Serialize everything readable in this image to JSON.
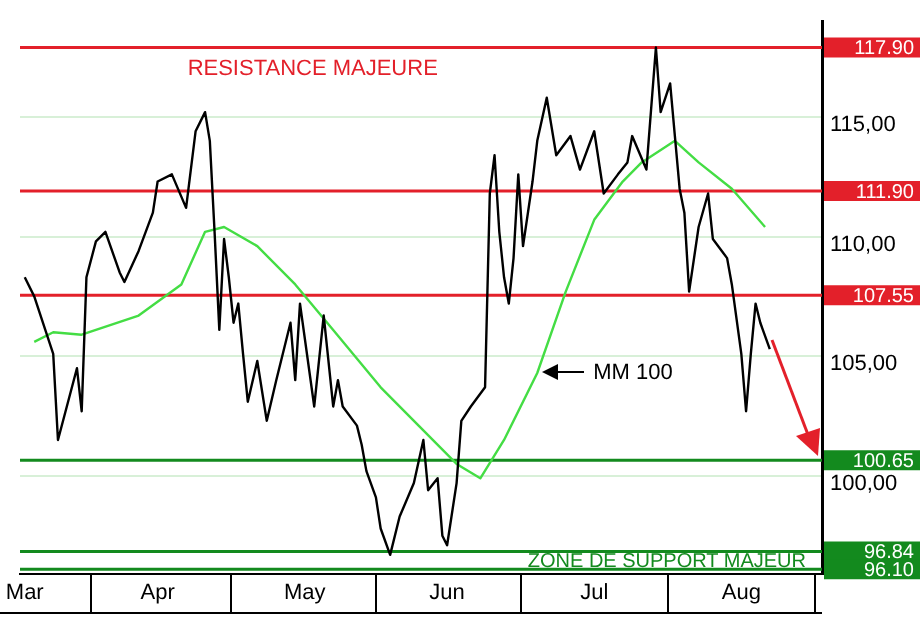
{
  "chart_data": {
    "type": "line",
    "xlim": [
      "--03-17",
      "--09-02"
    ],
    "ylim": [
      95.9,
      119.0
    ],
    "xticks": [
      {
        "value": "--03-18",
        "label": "Mar"
      },
      {
        "value": "--04-15",
        "label": "Apr"
      },
      {
        "value": "--05-16",
        "label": "May"
      },
      {
        "value": "--06-15",
        "label": "Jun"
      },
      {
        "value": "--07-16",
        "label": "Jul"
      },
      {
        "value": "--08-16",
        "label": "Aug"
      }
    ],
    "yticks": [
      {
        "value": 100,
        "label": "100,00"
      },
      {
        "value": 105,
        "label": "105,00"
      },
      {
        "value": 110,
        "label": "110,00"
      },
      {
        "value": 115,
        "label": "115,00"
      }
    ],
    "grid": "y",
    "legend": false,
    "marker": "none",
    "line_style": "solid",
    "series": [
      {
        "color": "#000000",
        "x": [
          "--03-18",
          "--03-20",
          "--03-24",
          "--03-25",
          "--03-29",
          "--03-30",
          "--03-31",
          "--04-02",
          "--04-04",
          "--04-07",
          "--04-08",
          "--04-11",
          "--04-14",
          "--04-15",
          "--04-18",
          "--04-21",
          "--04-23",
          "--04-25",
          "--04-26",
          "--04-27",
          "--04-28",
          "--04-29",
          "--04-30",
          "--05-01",
          "--05-02",
          "--05-03",
          "--05-04",
          "--05-06",
          "--05-08",
          "--05-10",
          "--05-13",
          "--05-14",
          "--05-15",
          "--05-18",
          "--05-20",
          "--05-22",
          "--05-23",
          "--05-24",
          "--05-27",
          "--05-28",
          "--05-29",
          "--05-31",
          "--06-01",
          "--06-03",
          "--06-05",
          "--06-08",
          "--06-10",
          "--06-11",
          "--06-13",
          "--06-14",
          "--06-15",
          "--06-17",
          "--06-18",
          "--06-20",
          "--06-23",
          "--06-24",
          "--06-25",
          "--06-26",
          "--06-27",
          "--06-28",
          "--06-29",
          "--06-30",
          "--07-01",
          "--07-03",
          "--07-04",
          "--07-06",
          "--07-08",
          "--07-11",
          "--07-13",
          "--07-16",
          "--07-18",
          "--07-21",
          "--07-23",
          "--07-24",
          "--07-27",
          "--07-29",
          "--07-30",
          "--08-01",
          "--08-02",
          "--08-03",
          "--08-04",
          "--08-05",
          "--08-07",
          "--08-09",
          "--08-10",
          "--08-13",
          "--08-14",
          "--08-16",
          "--08-17",
          "--08-18",
          "--08-19",
          "--08-20",
          "--08-22"
        ],
        "values": [
          108.3,
          107.5,
          105.1,
          101.5,
          104.5,
          102.7,
          108.3,
          109.8,
          110.2,
          108.5,
          108.1,
          109.4,
          111.0,
          112.3,
          112.6,
          111.2,
          114.4,
          115.2,
          114.0,
          110.2,
          106.1,
          109.9,
          108.3,
          106.4,
          107.2,
          105.1,
          103.1,
          104.8,
          102.3,
          104.0,
          106.4,
          104.0,
          107.2,
          102.9,
          106.7,
          102.9,
          104.0,
          102.9,
          102.1,
          101.3,
          100.2,
          99.1,
          97.8,
          96.7,
          98.3,
          99.7,
          101.5,
          99.4,
          99.9,
          97.5,
          97.1,
          99.7,
          102.3,
          102.9,
          103.7,
          111.8,
          113.4,
          110.2,
          108.3,
          107.2,
          109.1,
          112.6,
          109.6,
          112.3,
          114.0,
          115.8,
          113.4,
          114.2,
          112.8,
          114.4,
          111.8,
          112.6,
          113.1,
          114.2,
          112.8,
          117.9,
          115.2,
          116.4,
          114.2,
          112.0,
          111.0,
          107.7,
          110.4,
          111.8,
          109.9,
          109.1,
          108.0,
          105.1,
          102.7,
          105.1,
          107.2,
          106.4,
          105.3
        ]
      },
      {
        "color": "#44dd44",
        "x": [
          "--03-20",
          "--03-24",
          "--03-30",
          "--04-11",
          "--04-20",
          "--04-25",
          "--04-29",
          "--05-06",
          "--05-14",
          "--05-22",
          "--06-01",
          "--06-09",
          "--06-17",
          "--06-22",
          "--06-27",
          "--07-04",
          "--07-10",
          "--07-16",
          "--07-22",
          "--07-26",
          "--08-02",
          "--08-07",
          "--08-14",
          "--08-21"
        ],
        "values": [
          105.6,
          106.0,
          105.9,
          106.7,
          108.0,
          110.2,
          110.4,
          109.6,
          108.0,
          106.1,
          103.7,
          102.1,
          100.5,
          99.9,
          101.5,
          104.3,
          107.7,
          110.7,
          112.3,
          113.1,
          114.0,
          113.1,
          112.0,
          110.4
        ]
      }
    ],
    "ref_lines": [
      {
        "axis": "y",
        "value": 117.9,
        "label": "117.90",
        "color": "#e3202a"
      },
      {
        "axis": "y",
        "value": 111.9,
        "label": "111.90",
        "color": "#e3202a"
      },
      {
        "axis": "y",
        "value": 107.55,
        "label": "107.55",
        "color": "#e3202a"
      },
      {
        "axis": "y",
        "value": 100.65,
        "label": "100.65",
        "color": "#138a1e"
      },
      {
        "axis": "y",
        "value": 96.84,
        "label": "96.84",
        "color": "#138a1e"
      },
      {
        "axis": "y",
        "value": 96.1,
        "label": "96.10",
        "color": "#138a1e"
      }
    ],
    "annotations": [
      "RESISTANCE MAJEURE",
      {
        "text": "MM 100",
        "x": "--07-04",
        "y": 104.3
      },
      "ZONE DE SUPPORT MAJEUR"
    ]
  }
}
